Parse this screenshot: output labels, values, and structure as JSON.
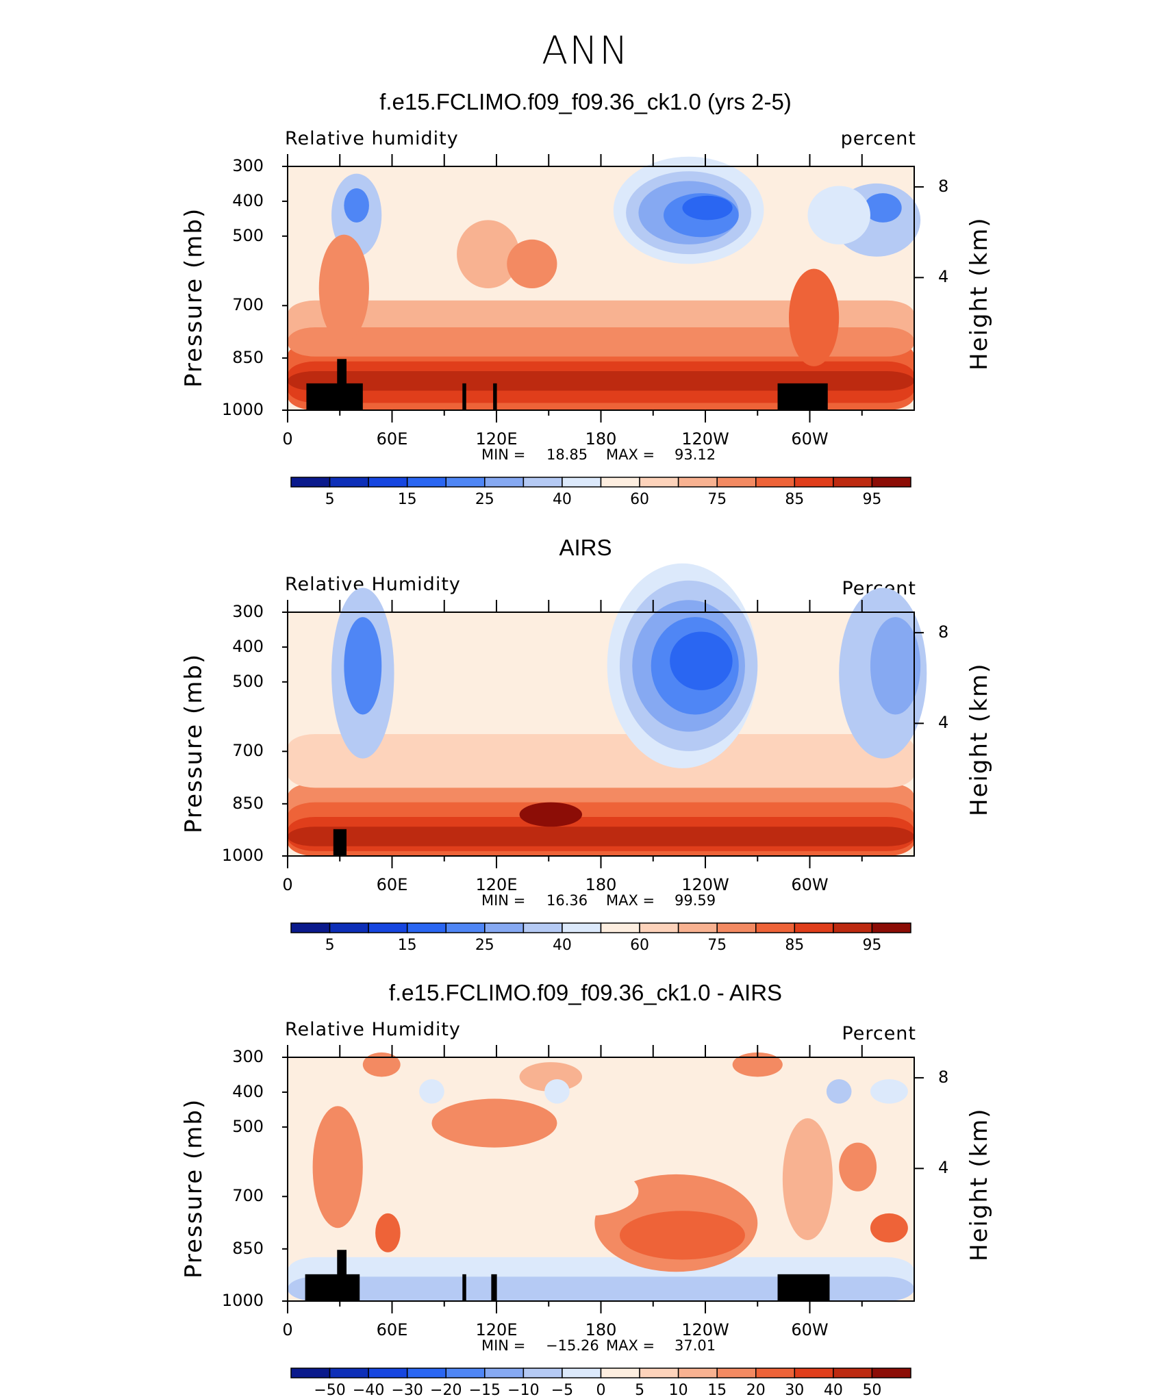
{
  "title": "ANN",
  "colors": {
    "scale": [
      "#0a1a8c",
      "#0d2fb8",
      "#1646e0",
      "#2a66f2",
      "#4f86f5",
      "#86a9f2",
      "#b5caf4",
      "#dce9fb",
      "#fdeee0",
      "#fdd3bb",
      "#f8b291",
      "#f38a62",
      "#ee6338",
      "#e03e1b",
      "#bd2a10",
      "#8c0d06"
    ]
  },
  "chart_data": [
    {
      "type": "heatmap",
      "title": "f.e15.FCLIMO.f09_f09.36_ck1.0 (yrs 2-5)",
      "left_label": "Relative  humidity",
      "right_label": "percent",
      "ylabel": "Pressure  (mb)",
      "y2label": "Height  (km)",
      "yticks": [
        "300",
        "400",
        "500",
        "700",
        "850",
        "1000"
      ],
      "y2ticks": [
        "8",
        "4"
      ],
      "xticks": [
        "0",
        "60E",
        "120E",
        "180",
        "120W",
        "60W"
      ],
      "min_label": "MIN =",
      "min_value": "18.85",
      "max_label": "MAX =",
      "max_value": "93.12",
      "colorbar_labels": [
        "5",
        "15",
        "25",
        "40",
        "60",
        "75",
        "85",
        "95"
      ]
    },
    {
      "type": "heatmap",
      "title": "AIRS",
      "left_label": "Relative  Humidity",
      "right_label": "Percent",
      "ylabel": "Pressure  (mb)",
      "y2label": "Height  (km)",
      "yticks": [
        "300",
        "400",
        "500",
        "700",
        "850",
        "1000"
      ],
      "y2ticks": [
        "8",
        "4"
      ],
      "xticks": [
        "0",
        "60E",
        "120E",
        "180",
        "120W",
        "60W"
      ],
      "min_label": "MIN =",
      "min_value": "16.36",
      "max_label": "MAX =",
      "max_value": "99.59",
      "colorbar_labels": [
        "5",
        "15",
        "25",
        "40",
        "60",
        "75",
        "85",
        "95"
      ]
    },
    {
      "type": "heatmap",
      "title": "f.e15.FCLIMO.f09_f09.36_ck1.0 - AIRS",
      "left_label": "Relative  Humidity",
      "right_label": "Percent",
      "ylabel": "Pressure  (mb)",
      "y2label": "Height  (km)",
      "yticks": [
        "300",
        "400",
        "500",
        "700",
        "850",
        "1000"
      ],
      "y2ticks": [
        "8",
        "4"
      ],
      "xticks": [
        "0",
        "60E",
        "120E",
        "180",
        "120W",
        "60W"
      ],
      "min_label": "MIN =",
      "min_value": "−15.26",
      "max_label": "MAX =",
      "max_value": "37.01",
      "colorbar_labels": [
        "−50",
        "−40",
        "−30",
        "−20",
        "−15",
        "−10",
        "−5",
        "0",
        "5",
        "10",
        "15",
        "20",
        "30",
        "40",
        "50"
      ]
    }
  ]
}
